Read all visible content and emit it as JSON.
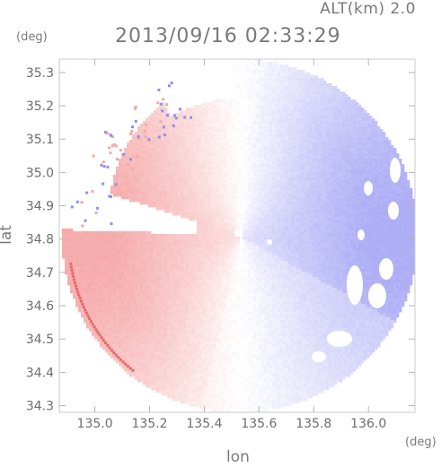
{
  "header": {
    "altitude_label": "ALT(km) 2.0",
    "timestamp": "2013/09/16 02:33:29"
  },
  "chart_data": {
    "type": "heatmap",
    "title": "2013/09/16 02:33:29",
    "xlabel": "lon",
    "ylabel": "lat",
    "xunit": "(deg)",
    "yunit": "(deg)",
    "xlim": [
      134.87,
      136.17
    ],
    "ylim": [
      34.28,
      35.34
    ],
    "xticks": [
      {
        "value": 135.0,
        "label": "135.0"
      },
      {
        "value": 135.2,
        "label": "135.2"
      },
      {
        "value": 135.4,
        "label": "135.4"
      },
      {
        "value": 135.6,
        "label": "135.6"
      },
      {
        "value": 135.8,
        "label": "135.8"
      },
      {
        "value": 136.0,
        "label": "136.0"
      }
    ],
    "yticks": [
      {
        "value": 34.3,
        "label": "34.3"
      },
      {
        "value": 34.4,
        "label": "34.4"
      },
      {
        "value": 34.5,
        "label": "34.5"
      },
      {
        "value": 34.6,
        "label": "34.6"
      },
      {
        "value": 34.7,
        "label": "34.7"
      },
      {
        "value": 34.8,
        "label": "34.8"
      },
      {
        "value": 34.9,
        "label": "34.9"
      },
      {
        "value": 35.0,
        "label": "35.0"
      },
      {
        "value": 35.1,
        "label": "35.1"
      },
      {
        "value": 35.2,
        "label": "35.2"
      },
      {
        "value": 35.3,
        "label": "35.3"
      }
    ],
    "radar_center": {
      "lon": 135.53,
      "lat": 34.81
    },
    "coverage_radius_deg": {
      "lon": 0.65,
      "lat": 0.53
    },
    "colors": {
      "approaching": "#7b7bf0",
      "receding": "#f07878",
      "zero": "#ffffff"
    },
    "grid": false,
    "legend": "none"
  }
}
